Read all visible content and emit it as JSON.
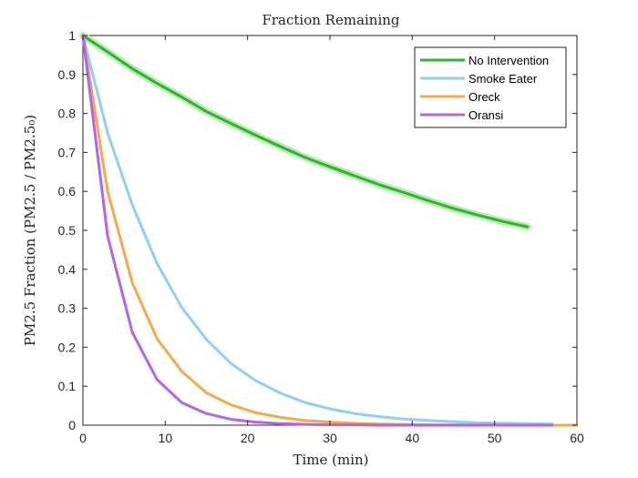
{
  "chart_data": {
    "type": "line",
    "title": "Fraction Remaining",
    "xlabel": "Time (min)",
    "ylabel": "PM2.5 Fraction (PM2.5 / PM2.5₀)",
    "xlim": [
      0,
      60
    ],
    "ylim": [
      0,
      1
    ],
    "x_ticks": [
      "0",
      "10",
      "20",
      "30",
      "40",
      "50",
      "60"
    ],
    "y_ticks": [
      "0",
      "0.1",
      "0.2",
      "0.3",
      "0.4",
      "0.5",
      "0.6",
      "0.7",
      "0.8",
      "0.9",
      "1"
    ],
    "grid": false,
    "legend_position": "top-right",
    "series": [
      {
        "name": "No Intervention",
        "color": "#2db52d",
        "band_color": "#b8ecb0",
        "x": [
          0,
          3,
          6,
          9,
          12,
          15,
          18,
          21,
          24,
          27,
          30,
          33,
          36,
          39,
          42,
          45,
          48,
          51,
          54
        ],
        "y": [
          1.0,
          0.958,
          0.915,
          0.877,
          0.842,
          0.805,
          0.774,
          0.744,
          0.715,
          0.687,
          0.663,
          0.64,
          0.617,
          0.597,
          0.576,
          0.556,
          0.539,
          0.523,
          0.509
        ]
      },
      {
        "name": "Smoke Eater",
        "color": "#8ecff2",
        "x": [
          0,
          3,
          6,
          9,
          12,
          15,
          18,
          21,
          24,
          27,
          30,
          33,
          36,
          39,
          42,
          45,
          48,
          51,
          54,
          57
        ],
        "y": [
          1.0,
          0.75,
          0.565,
          0.415,
          0.302,
          0.22,
          0.158,
          0.114,
          0.082,
          0.058,
          0.042,
          0.03,
          0.022,
          0.016,
          0.012,
          0.009,
          0.006,
          0.005,
          0.004,
          0.003
        ]
      },
      {
        "name": "Oreck",
        "color": "#f4a94a",
        "x": [
          0,
          3,
          6,
          9,
          12,
          15,
          18,
          21,
          24,
          27,
          30,
          33,
          36,
          39,
          42,
          45,
          48,
          51,
          54,
          57,
          60
        ],
        "y": [
          1.0,
          0.6,
          0.365,
          0.222,
          0.138,
          0.083,
          0.052,
          0.032,
          0.02,
          0.012,
          0.008,
          0.005,
          0.003,
          0.002,
          0.001,
          0.001,
          0.001,
          0.0,
          0.0,
          0.0,
          0.0
        ]
      },
      {
        "name": "Oransi",
        "color": "#b464e6",
        "x": [
          0,
          3,
          6,
          9,
          12,
          15,
          18,
          21,
          24,
          27,
          30,
          33,
          36,
          39,
          42,
          45,
          48,
          51,
          54,
          57
        ],
        "y": [
          1.0,
          0.485,
          0.238,
          0.117,
          0.058,
          0.03,
          0.015,
          0.008,
          0.004,
          0.002,
          0.001,
          0.001,
          0.0,
          0.0,
          0.0,
          0.0,
          0.0,
          0.0,
          0.0,
          0.0
        ]
      }
    ]
  }
}
